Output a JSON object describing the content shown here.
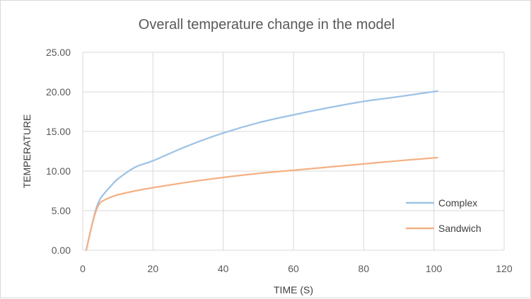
{
  "chart_data": {
    "type": "line",
    "title": "Overall temperature change in the model",
    "xlabel": "TIME (S)",
    "ylabel": "TEMPERATURE",
    "xlim": [
      0,
      120
    ],
    "ylim": [
      0,
      25
    ],
    "xticks": [
      0,
      20,
      40,
      60,
      80,
      100,
      120
    ],
    "yticks": [
      0,
      5,
      10,
      15,
      20,
      25
    ],
    "xtick_labels": [
      "0",
      "20",
      "40",
      "60",
      "80",
      "100",
      "120"
    ],
    "ytick_labels": [
      "0.00",
      "5.00",
      "10.00",
      "15.00",
      "20.00",
      "25.00"
    ],
    "grid": true,
    "legend_position": "right",
    "series": [
      {
        "name": "Complex",
        "color": "#9dc3e6",
        "x": [
          1,
          2,
          3,
          4,
          5,
          6,
          8,
          10,
          15,
          20,
          30,
          40,
          50,
          60,
          70,
          80,
          90,
          101
        ],
        "y": [
          0,
          2.0,
          3.9,
          5.5,
          6.5,
          7.1,
          8.1,
          9.0,
          10.5,
          11.3,
          13.2,
          14.8,
          16.1,
          17.1,
          18.0,
          18.8,
          19.4,
          20.1
        ]
      },
      {
        "name": "Sandwich",
        "color": "#f4b183",
        "x": [
          1,
          2,
          3,
          4,
          5,
          6,
          8,
          10,
          15,
          20,
          30,
          40,
          50,
          60,
          70,
          80,
          90,
          101
        ],
        "y": [
          0,
          2.0,
          3.8,
          5.2,
          6.0,
          6.3,
          6.7,
          7.0,
          7.5,
          7.9,
          8.6,
          9.2,
          9.7,
          10.1,
          10.5,
          10.9,
          11.3,
          11.7
        ]
      }
    ]
  }
}
